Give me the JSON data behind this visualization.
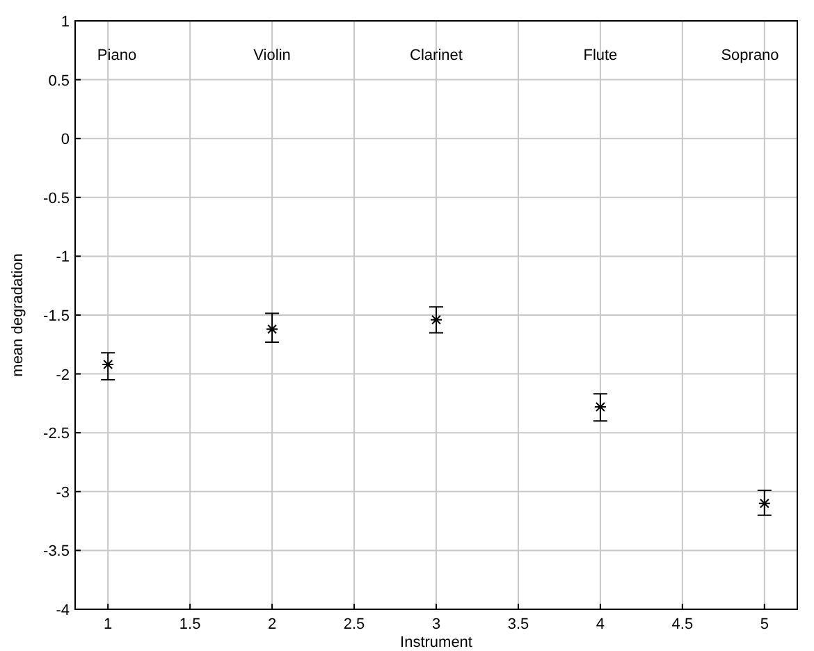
{
  "chart_data": {
    "type": "scatter",
    "xlabel": "Instrument",
    "ylabel": "mean degradation",
    "x": [
      1,
      2,
      3,
      4,
      5
    ],
    "series": [
      {
        "color": "#000000",
        "values": [
          -1.92,
          -1.62,
          -1.54,
          -2.28,
          -3.1
        ],
        "errors": [
          [
            -2.05,
            -1.82
          ],
          [
            -1.73,
            -1.485
          ],
          [
            -1.65,
            -1.43
          ],
          [
            -2.4,
            -2.17
          ],
          [
            -3.2,
            -2.99
          ]
        ]
      }
    ],
    "xlim": [
      0.8,
      5.2
    ],
    "xticks": [
      1,
      1.5,
      2,
      2.5,
      3,
      3.5,
      4,
      4.5,
      5
    ],
    "ylim": [
      -4,
      1
    ],
    "yticks": [
      -4,
      -3.5,
      -3,
      -2.5,
      -2,
      -1.5,
      -1,
      -0.5,
      0,
      0.5,
      1
    ],
    "grid": true,
    "marker": "cross",
    "annotations": [
      "Piano",
      "Violin",
      "Clarinet",
      "Flute",
      "Soprano"
    ]
  }
}
